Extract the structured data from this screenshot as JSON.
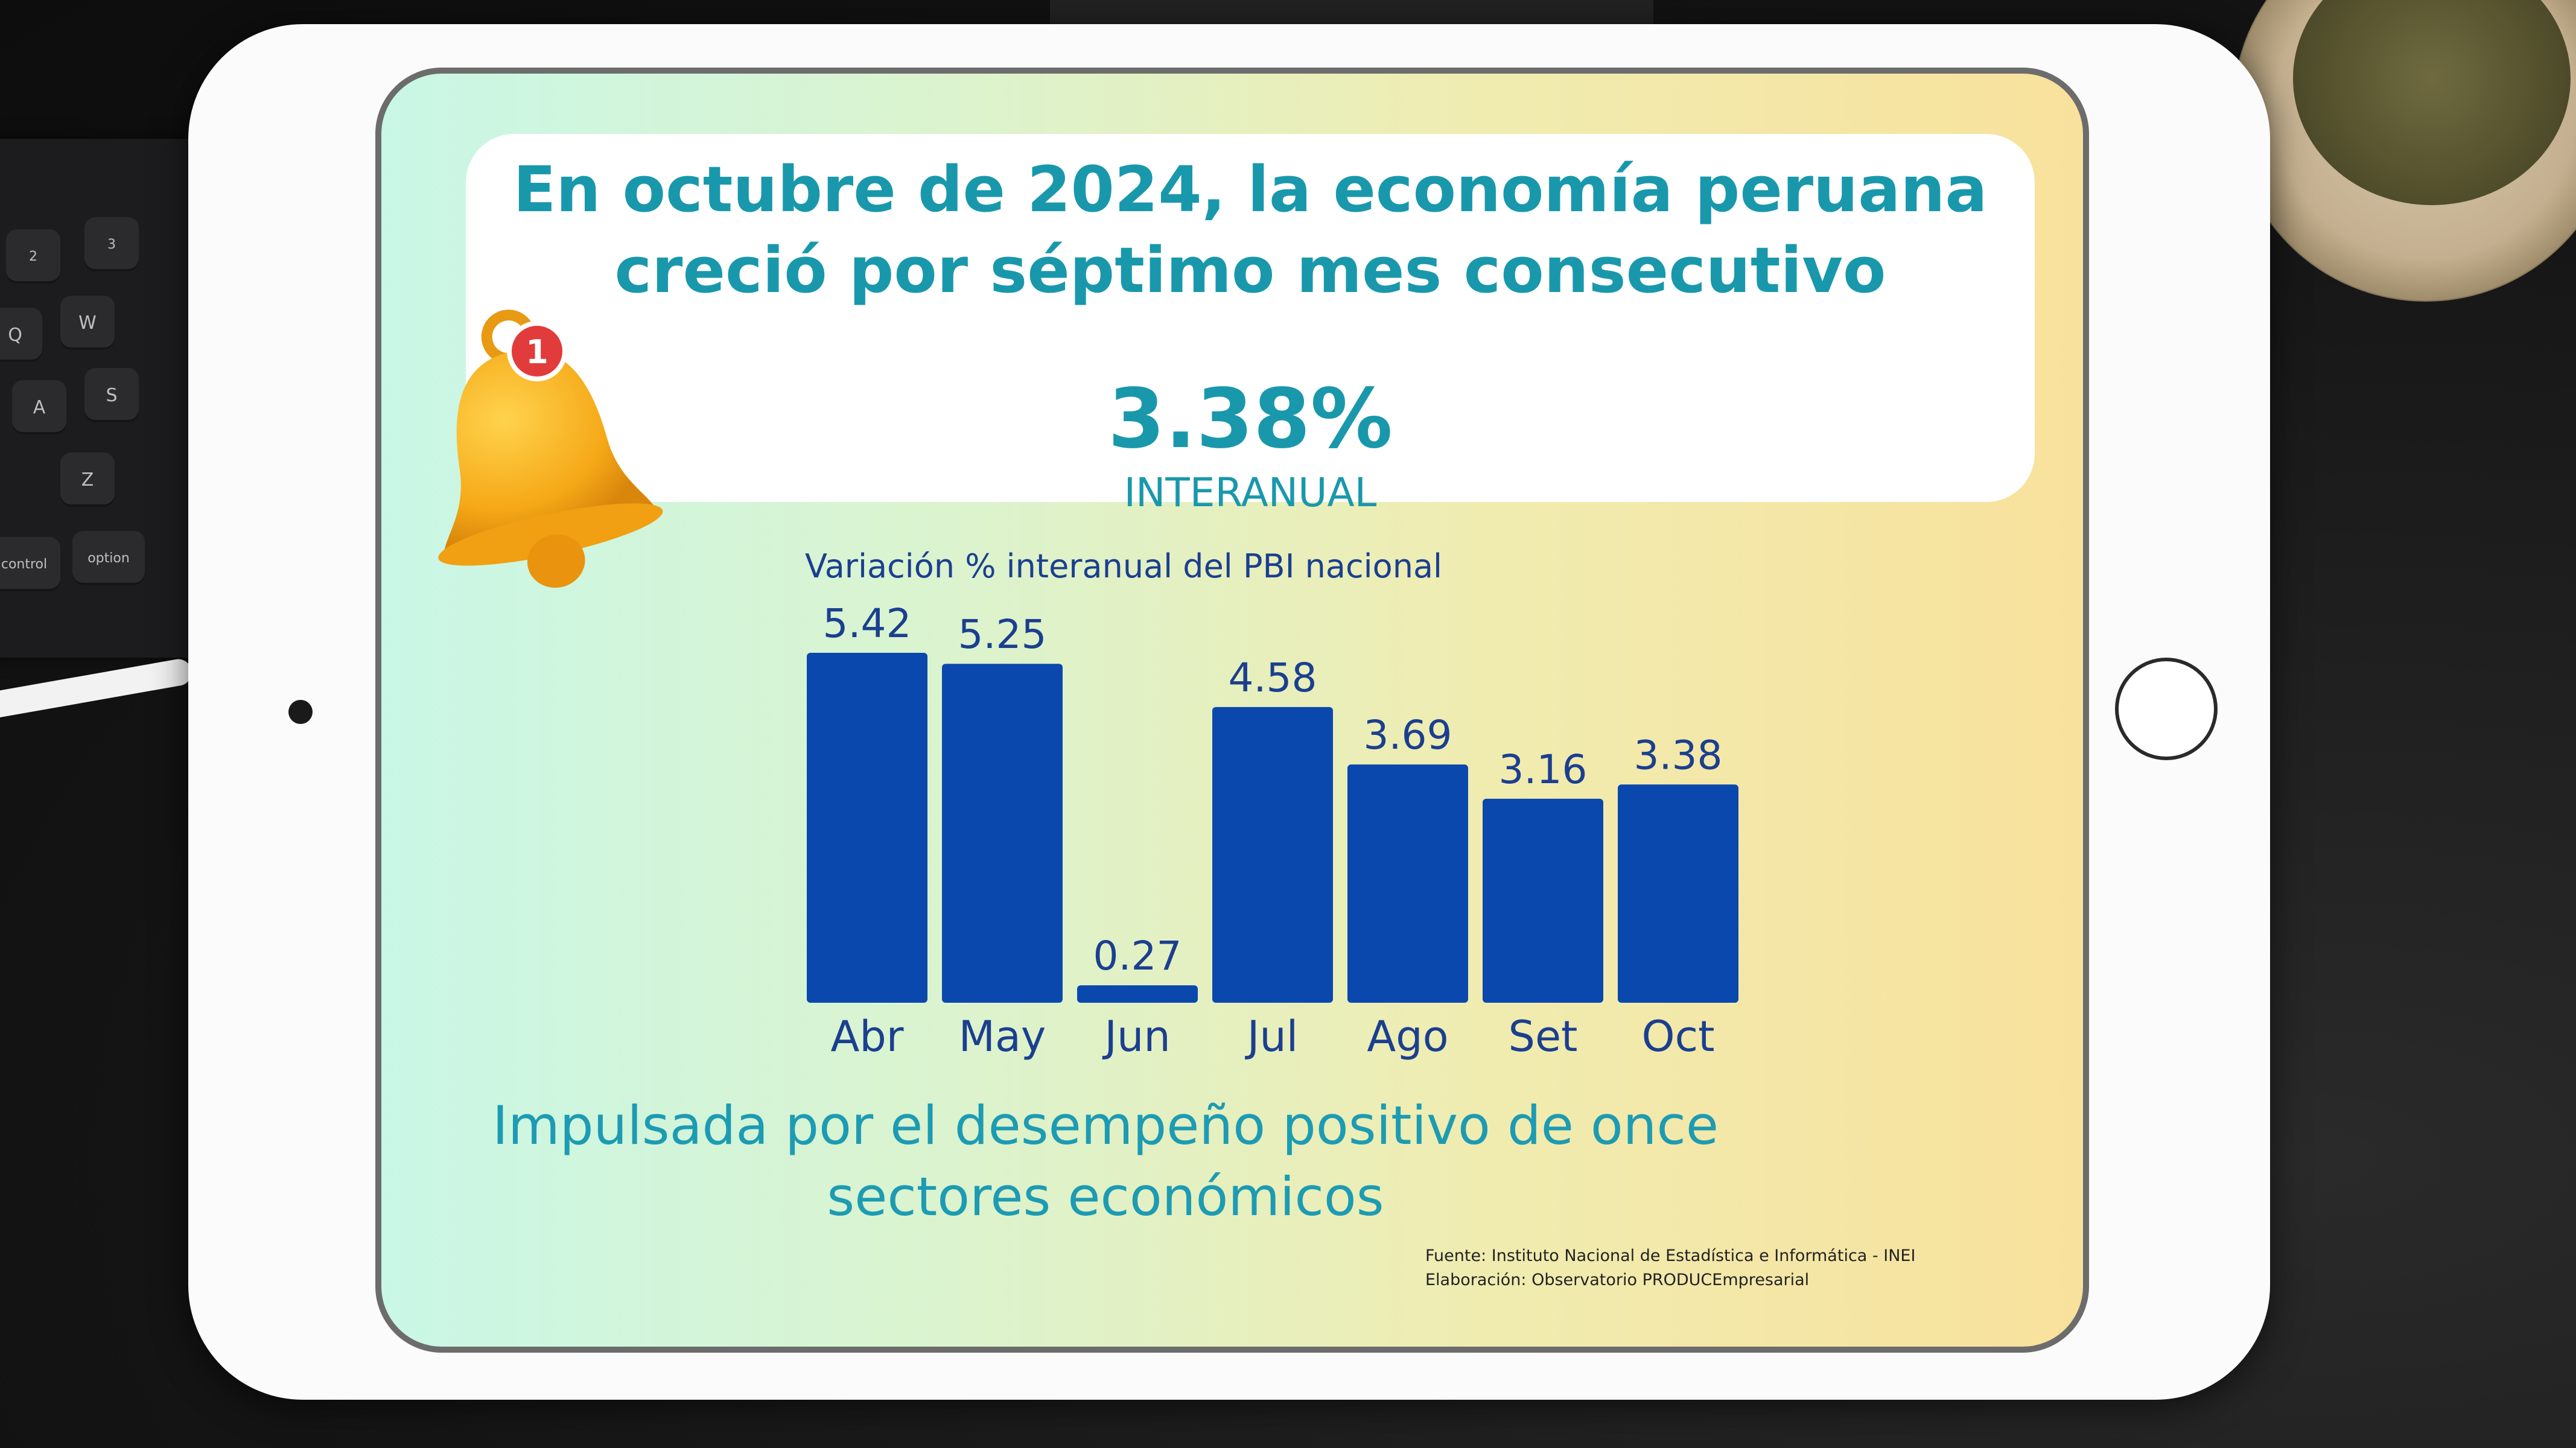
{
  "headline": {
    "line1": "En octubre de 2024, la economía peruana",
    "line2": "creció por séptimo mes consecutivo",
    "value": "3.38%",
    "unit": "INTERANUAL"
  },
  "notification_badge": "1",
  "chart_data": {
    "type": "bar",
    "title": "Variación % interanual  del PBI nacional",
    "categories": [
      "Abr",
      "May",
      "Jun",
      "Jul",
      "Ago",
      "Set",
      "Oct"
    ],
    "values": [
      5.42,
      5.25,
      0.27,
      4.58,
      3.69,
      3.16,
      3.38
    ],
    "value_labels": [
      "5.42",
      "5.25",
      "0.27",
      "4.58",
      "3.69",
      "3.16",
      "3.38"
    ],
    "ylim": [
      0,
      5.42
    ],
    "grid": false,
    "bar_color": "#0a48ad"
  },
  "footer": {
    "line1": "Impulsada por el desempeño positivo de once",
    "line2": "sectores económicos"
  },
  "source": {
    "line1": "Fuente: Instituto Nacional de Estadística e Informática - INEI",
    "line2": "Elaboración: Observatorio PRODUCEmpresarial"
  },
  "keyboard_keys": [
    "@",
    "2",
    "#",
    "3",
    "Q",
    "W",
    "A",
    "S",
    "Z",
    "control",
    "option"
  ],
  "colors": {
    "accent": "#1998ac",
    "chart_text": "#1b3f8f",
    "bar": "#0a48ad",
    "badge": "#e23b3b",
    "bell": "#f7b21f"
  }
}
